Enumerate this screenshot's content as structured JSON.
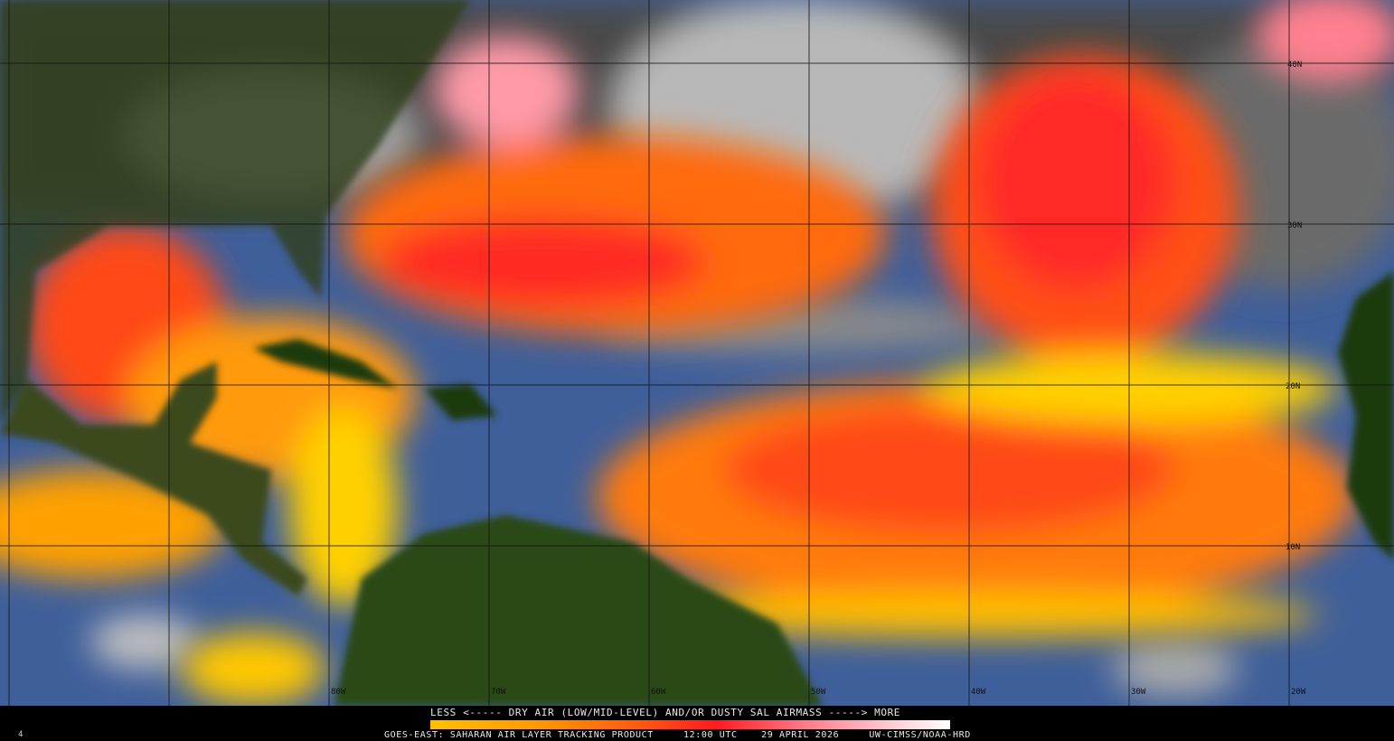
{
  "map": {
    "latitude_labels": [
      "40N",
      "30N",
      "20N",
      "10N"
    ],
    "longitude_labels": [
      "80W",
      "70W",
      "60W",
      "50W",
      "40W",
      "30W",
      "20W"
    ],
    "colors": {
      "ocean": "#3f5f9a",
      "land": "#1f3a10",
      "cloud": "#8a8a8a",
      "dry_low": "#ffc000",
      "dry_mid": "#ff5a10",
      "dry_high": "#ff1a20",
      "dry_max": "#ffd0d8"
    }
  },
  "legend": {
    "scale_label": "LESS <----- DRY AIR (LOW/MID-LEVEL) AND/OR DUSTY SAL AIRMASS -----> MORE",
    "product": "GOES-EAST: SAHARAN AIR LAYER TRACKING PRODUCT",
    "time": "12:00 UTC",
    "date": "29 APRIL 2026",
    "credit": "UW-CIMSS/NOAA-HRD",
    "corner_mark": "4"
  }
}
